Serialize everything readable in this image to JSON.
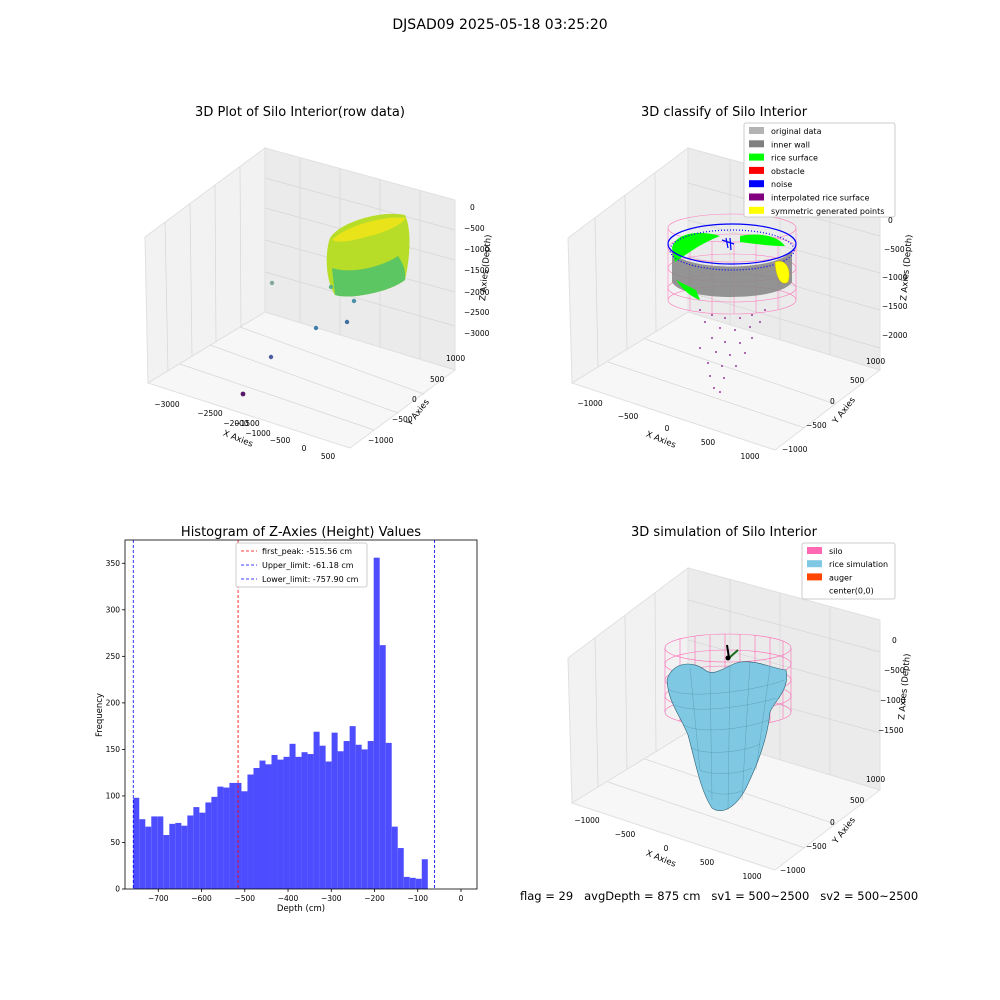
{
  "suptitle": "DJSAD09 2025-05-18 03:25:20",
  "footer": "flag = 29   avgDepth = 875 cm   sv1 = 500~2500   sv2 = 500~2500",
  "colors": {
    "hist_bar": "#4d4dff",
    "peak_line": "#ff0000",
    "limit_line": "#0000ff",
    "silo": "#ff69b4",
    "rice_sim": "#7ec8e3",
    "auger": "#ff4500",
    "inner_wall": "#808080",
    "rice_surface": "#00ff00",
    "noise": "#0000ff",
    "interp": "#800080",
    "symmetric": "#ffff00",
    "original": "#b3b3b3",
    "obstacle": "#ff0000"
  },
  "chart_data": [
    {
      "type": "scatter",
      "title": "3D Plot of Silo Interior(row data)",
      "xlabel": "X Axies",
      "ylabel": "Y Axies",
      "zlabel": "Z Axies (Depth)",
      "x_ticks": [
        "−3000",
        "−2500",
        "−2000",
        "−1500",
        "−1000",
        "−500",
        "0",
        "500"
      ],
      "y_ticks": [
        "−1000",
        "−500",
        "0",
        "500",
        "1000"
      ],
      "z_ticks": [
        "−3000",
        "−2500",
        "−2000",
        "−1500",
        "−1000",
        "−500",
        "0"
      ],
      "projection": "3d",
      "grid": true
    },
    {
      "type": "scatter",
      "title": "3D classify of Silo Interior",
      "xlabel": "X Axies",
      "ylabel": "Y Axies",
      "zlabel": "Z Axies (Depth)",
      "x_ticks": [
        "−1000",
        "−500",
        "0",
        "500",
        "1000"
      ],
      "y_ticks": [
        "−1000",
        "−500",
        "0",
        "500",
        "1000"
      ],
      "z_ticks": [
        "−2000",
        "−1500",
        "−1000",
        "−500",
        "0"
      ],
      "legend": [
        "original data",
        "inner wall",
        "rice surface",
        "obstacle",
        "noise",
        "interpolated rice surface",
        "symmetric generated points"
      ],
      "legend_colors": [
        "#b3b3b3",
        "#808080",
        "#00ff00",
        "#ff0000",
        "#0000ff",
        "#800080",
        "#ffff00"
      ],
      "legend_position": "top-right",
      "projection": "3d",
      "grid": true
    },
    {
      "type": "bar",
      "title": "Histogram of Z-Axies (Height) Values",
      "xlabel": "Depth (cm)",
      "ylabel": "Frequency",
      "xlim": [
        -777,
        37
      ],
      "ylim": [
        0,
        375
      ],
      "x_ticks": [
        -700,
        -600,
        -500,
        -400,
        -300,
        -200,
        -100,
        0
      ],
      "y_ticks": [
        0,
        50,
        100,
        150,
        200,
        250,
        300,
        350
      ],
      "bin_start": -757.9,
      "bin_width": 13.9,
      "values": [
        98,
        75,
        67,
        78,
        78,
        58,
        70,
        71,
        68,
        79,
        88,
        82,
        93,
        99,
        110,
        109,
        114,
        114,
        105,
        123,
        130,
        138,
        134,
        144,
        139,
        142,
        156,
        142,
        147,
        145,
        169,
        154,
        137,
        168,
        148,
        159,
        175,
        155,
        150,
        159,
        356,
        262,
        157,
        67,
        44,
        13,
        12,
        11,
        32
      ],
      "vlines": [
        {
          "label": "first_peak: -515.56 cm",
          "x": -515.56,
          "color": "#ff0000"
        },
        {
          "label": "Upper_limit: -61.18 cm",
          "x": -61.18,
          "color": "#0000ff"
        },
        {
          "label": "Lower_limit: -757.90 cm",
          "x": -757.9,
          "color": "#0000ff"
        }
      ],
      "legend_position": "top-center",
      "grid": false
    },
    {
      "type": "surface",
      "title": "3D simulation of Silo Interior",
      "xlabel": "X Axies",
      "ylabel": "Y Axies",
      "zlabel": "Z Axies (Depth)",
      "x_ticks": [
        "−1000",
        "−500",
        "0",
        "500",
        "1000"
      ],
      "y_ticks": [
        "−1000",
        "−500",
        "0",
        "500",
        "1000"
      ],
      "z_ticks": [
        "−1500",
        "−1000",
        "−500",
        "0"
      ],
      "legend": [
        "silo",
        "rice simulation",
        "auger",
        "center(0,0)"
      ],
      "legend_colors": [
        "#ff69b4",
        "#7ec8e3",
        "#ff4500",
        "none"
      ],
      "legend_position": "top-right",
      "projection": "3d",
      "grid": true
    }
  ]
}
